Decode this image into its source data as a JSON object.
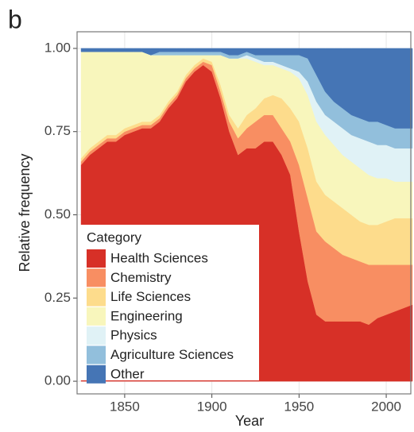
{
  "panel_label": "b",
  "chart_data": {
    "type": "stacked_area",
    "xlabel": "Year",
    "ylabel": "Relative frequency",
    "x": [
      1825,
      1830,
      1835,
      1840,
      1845,
      1850,
      1855,
      1860,
      1865,
      1870,
      1875,
      1880,
      1885,
      1890,
      1895,
      1900,
      1905,
      1910,
      1915,
      1920,
      1925,
      1930,
      1935,
      1940,
      1945,
      1950,
      1955,
      1960,
      1965,
      1970,
      1975,
      1980,
      1985,
      1990,
      1995,
      2000,
      2005,
      2010,
      2015
    ],
    "series": [
      {
        "name": "Health Sciences",
        "color": "#d73027",
        "values": [
          0.65,
          0.68,
          0.7,
          0.72,
          0.72,
          0.74,
          0.75,
          0.76,
          0.76,
          0.78,
          0.82,
          0.85,
          0.9,
          0.93,
          0.95,
          0.93,
          0.85,
          0.75,
          0.68,
          0.7,
          0.7,
          0.72,
          0.72,
          0.68,
          0.62,
          0.45,
          0.3,
          0.2,
          0.18,
          0.18,
          0.18,
          0.18,
          0.18,
          0.17,
          0.19,
          0.2,
          0.21,
          0.22,
          0.23
        ]
      },
      {
        "name": "Chemistry",
        "color": "#f88e62",
        "values": [
          0.01,
          0.01,
          0.01,
          0.01,
          0.01,
          0.01,
          0.01,
          0.01,
          0.01,
          0.01,
          0.01,
          0.01,
          0.01,
          0.01,
          0.01,
          0.02,
          0.02,
          0.03,
          0.05,
          0.06,
          0.08,
          0.08,
          0.08,
          0.08,
          0.1,
          0.2,
          0.25,
          0.25,
          0.24,
          0.22,
          0.2,
          0.19,
          0.18,
          0.18,
          0.16,
          0.15,
          0.14,
          0.13,
          0.12
        ]
      },
      {
        "name": "Life Sciences",
        "color": "#fddc8c",
        "values": [
          0.01,
          0.01,
          0.01,
          0.01,
          0.01,
          0.01,
          0.01,
          0.01,
          0.01,
          0.01,
          0.01,
          0.01,
          0.01,
          0.01,
          0.01,
          0.01,
          0.02,
          0.02,
          0.03,
          0.04,
          0.04,
          0.05,
          0.06,
          0.09,
          0.1,
          0.13,
          0.15,
          0.15,
          0.14,
          0.14,
          0.14,
          0.13,
          0.12,
          0.12,
          0.12,
          0.13,
          0.14,
          0.14,
          0.14
        ]
      },
      {
        "name": "Engineering",
        "color": "#f8f6bc",
        "values": [
          0.32,
          0.29,
          0.27,
          0.25,
          0.25,
          0.23,
          0.22,
          0.21,
          0.2,
          0.18,
          0.14,
          0.11,
          0.06,
          0.03,
          0.01,
          0.02,
          0.09,
          0.17,
          0.21,
          0.17,
          0.14,
          0.1,
          0.09,
          0.09,
          0.11,
          0.13,
          0.16,
          0.18,
          0.18,
          0.17,
          0.16,
          0.16,
          0.16,
          0.15,
          0.14,
          0.13,
          0.11,
          0.11,
          0.11
        ]
      },
      {
        "name": "Physics",
        "color": "#e0f2f6",
        "values": [
          0,
          0,
          0,
          0,
          0,
          0,
          0,
          0,
          0,
          0,
          0,
          0,
          0,
          0,
          0,
          0,
          0,
          0,
          0,
          0.01,
          0.01,
          0.01,
          0.01,
          0.01,
          0.01,
          0.02,
          0.04,
          0.06,
          0.06,
          0.07,
          0.08,
          0.08,
          0.09,
          0.1,
          0.1,
          0.1,
          0.1,
          0.1,
          0.1
        ]
      },
      {
        "name": "Agriculture Sciences",
        "color": "#92bfdc",
        "values": [
          0,
          0,
          0,
          0,
          0,
          0,
          0,
          0,
          0,
          0.01,
          0.01,
          0.01,
          0.01,
          0.01,
          0.01,
          0.01,
          0.01,
          0.01,
          0.01,
          0.01,
          0.01,
          0.02,
          0.02,
          0.03,
          0.04,
          0.05,
          0.07,
          0.08,
          0.07,
          0.06,
          0.06,
          0.06,
          0.06,
          0.06,
          0.07,
          0.06,
          0.06,
          0.06,
          0.06
        ]
      },
      {
        "name": "Other",
        "color": "#4575b5",
        "values": [
          0.01,
          0.01,
          0.01,
          0.01,
          0.01,
          0.01,
          0.01,
          0.01,
          0.02,
          0.01,
          0.01,
          0.01,
          0.01,
          0.01,
          0.01,
          0.01,
          0.01,
          0.02,
          0.02,
          0.01,
          0.02,
          0.02,
          0.02,
          0.02,
          0.02,
          0.02,
          0.03,
          0.08,
          0.13,
          0.16,
          0.18,
          0.2,
          0.21,
          0.22,
          0.22,
          0.23,
          0.24,
          0.24,
          0.24
        ]
      }
    ],
    "xlim": [
      1822.7,
      2014.1
    ],
    "ylim": [
      -0.038,
      1.05
    ],
    "xticks": [
      1850,
      1900,
      1950,
      2000
    ],
    "yticks": [
      {
        "value": 0,
        "label": "0.00"
      },
      {
        "value": 0.25,
        "label": "0.25"
      },
      {
        "value": 0.5,
        "label": "0.50"
      },
      {
        "value": 0.75,
        "label": "0.75"
      },
      {
        "value": 1,
        "label": "1.00"
      }
    ],
    "grid": true,
    "legend": "bottom-left",
    "legend_title": "Category"
  }
}
